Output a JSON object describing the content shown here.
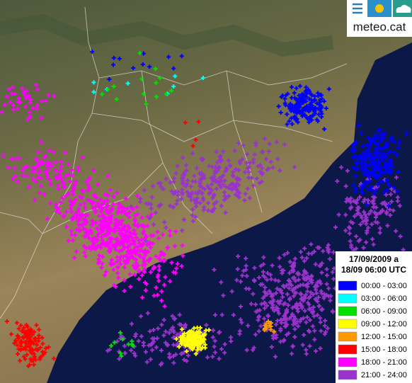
{
  "header": {
    "logo": "meteo.cat"
  },
  "legend": {
    "title_lines": [
      "17/09/2009 a",
      "18/09 06:00 UTC"
    ],
    "items": [
      {
        "label": "00:00 - 03:00",
        "color": "#0000ff"
      },
      {
        "label": "03:00 - 06:00",
        "color": "#00ffff"
      },
      {
        "label": "06:00 - 09:00",
        "color": "#00e000"
      },
      {
        "label": "09:00 - 12:00",
        "color": "#ffff00"
      },
      {
        "label": "12:00 - 15:00",
        "color": "#ff9900"
      },
      {
        "label": "15:00 - 18:00",
        "color": "#ff0000"
      },
      {
        "label": "18:00 - 21:00",
        "color": "#ff00ff"
      },
      {
        "label": "21:00 - 24:00",
        "color": "#9933cc"
      }
    ]
  }
}
